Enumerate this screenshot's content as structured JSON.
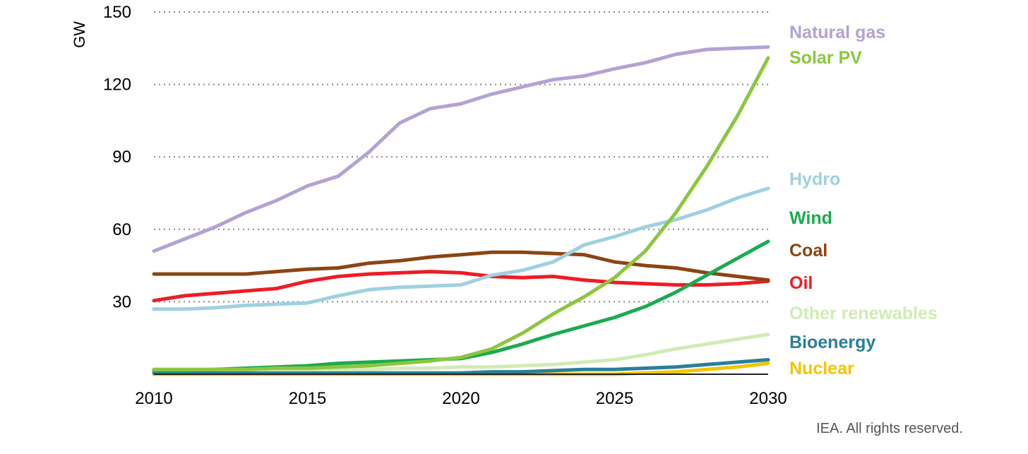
{
  "chart_data": {
    "type": "line",
    "title": "",
    "xlabel": "",
    "ylabel": "GW",
    "xlim": [
      2010,
      2030
    ],
    "ylim": [
      0,
      150
    ],
    "x_ticks": [
      2010,
      2015,
      2020,
      2025,
      2030
    ],
    "y_ticks": [
      30,
      60,
      90,
      120,
      150
    ],
    "grid": "horizontal dotted",
    "x": [
      2010,
      2011,
      2012,
      2013,
      2014,
      2015,
      2016,
      2017,
      2018,
      2019,
      2020,
      2021,
      2022,
      2023,
      2024,
      2025,
      2026,
      2027,
      2028,
      2029,
      2030
    ],
    "series": [
      {
        "name": "Natural gas",
        "color": "#b3a2d3",
        "values": [
          51,
          56,
          61,
          67,
          72,
          78,
          82,
          92,
          104,
          110,
          112,
          116,
          119,
          122,
          123.5,
          126.5,
          129,
          132.5,
          134.5,
          135,
          135.5
        ]
      },
      {
        "name": "Solar PV",
        "color": "#8cc63f",
        "values": [
          2,
          2,
          2,
          2,
          2.5,
          2.5,
          3,
          3.5,
          4.5,
          5.5,
          7,
          10.5,
          17,
          25,
          32,
          40,
          51,
          67,
          86,
          107,
          131
        ]
      },
      {
        "name": "Hydro",
        "color": "#9fd0e0",
        "values": [
          27,
          27,
          27.5,
          28.5,
          29,
          29.5,
          32.5,
          35,
          36,
          36.5,
          37,
          41,
          43,
          46.5,
          53.5,
          57,
          61,
          64,
          68,
          73,
          77
        ]
      },
      {
        "name": "Wind",
        "color": "#1aab4f",
        "values": [
          1.5,
          1.5,
          2,
          2.5,
          3,
          3.5,
          4.5,
          5,
          5.5,
          6,
          6.5,
          9,
          12.5,
          16.5,
          20,
          23.5,
          28,
          34,
          41,
          48,
          55
        ]
      },
      {
        "name": "Coal",
        "color": "#8b4513",
        "values": [
          41.5,
          41.5,
          41.5,
          41.5,
          42.5,
          43.5,
          44,
          46,
          47,
          48.5,
          49.5,
          50.5,
          50.5,
          50,
          49.5,
          46.5,
          45,
          44,
          42,
          40.5,
          39
        ]
      },
      {
        "name": "Oil",
        "color": "#ee1c25",
        "values": [
          30.5,
          32.5,
          33.5,
          34.5,
          35.5,
          38.5,
          40.5,
          41.5,
          42,
          42.5,
          42,
          40.5,
          40,
          40.5,
          39,
          38,
          37.5,
          37,
          37,
          37.5,
          38.5
        ]
      },
      {
        "name": "Other renewables",
        "color": "#d2ebb6",
        "values": [
          2,
          2,
          2,
          2,
          2,
          2,
          2,
          2,
          2.5,
          2.5,
          3,
          3,
          3.5,
          4,
          5,
          6,
          8,
          10.5,
          12.5,
          14.5,
          16.5
        ]
      },
      {
        "name": "Bioenergy",
        "color": "#2a7f99",
        "values": [
          0.5,
          0.5,
          0.5,
          0.5,
          0.5,
          0.5,
          0.5,
          0.5,
          0.5,
          0.5,
          0.5,
          1,
          1,
          1.5,
          2,
          2,
          2.5,
          3,
          4,
          5,
          6
        ]
      },
      {
        "name": "Nuclear",
        "color": "#f5c400",
        "values": [
          0,
          0,
          0,
          0,
          0,
          0,
          0,
          0,
          0,
          0,
          0,
          0,
          0,
          0,
          0,
          0,
          0.5,
          1,
          2,
          3,
          4.5
        ]
      }
    ]
  },
  "credit": "IEA. All rights reserved."
}
